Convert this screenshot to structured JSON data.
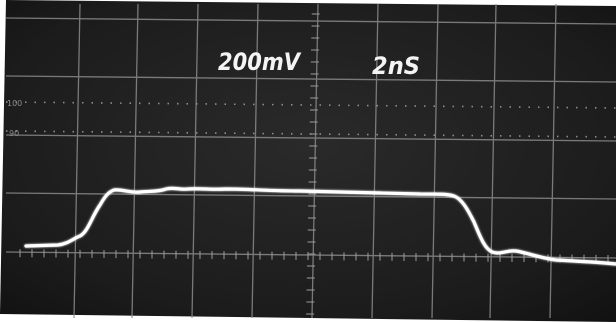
{
  "scope": {
    "volts_per_div": "200mV",
    "time_per_div": "2nS",
    "reticle_marks": {
      "top": "100",
      "bottom": "90"
    },
    "colors": {
      "screen": "#1b1b1b",
      "graticule": "#8a8a8a",
      "trace": "#ffffff"
    }
  }
}
